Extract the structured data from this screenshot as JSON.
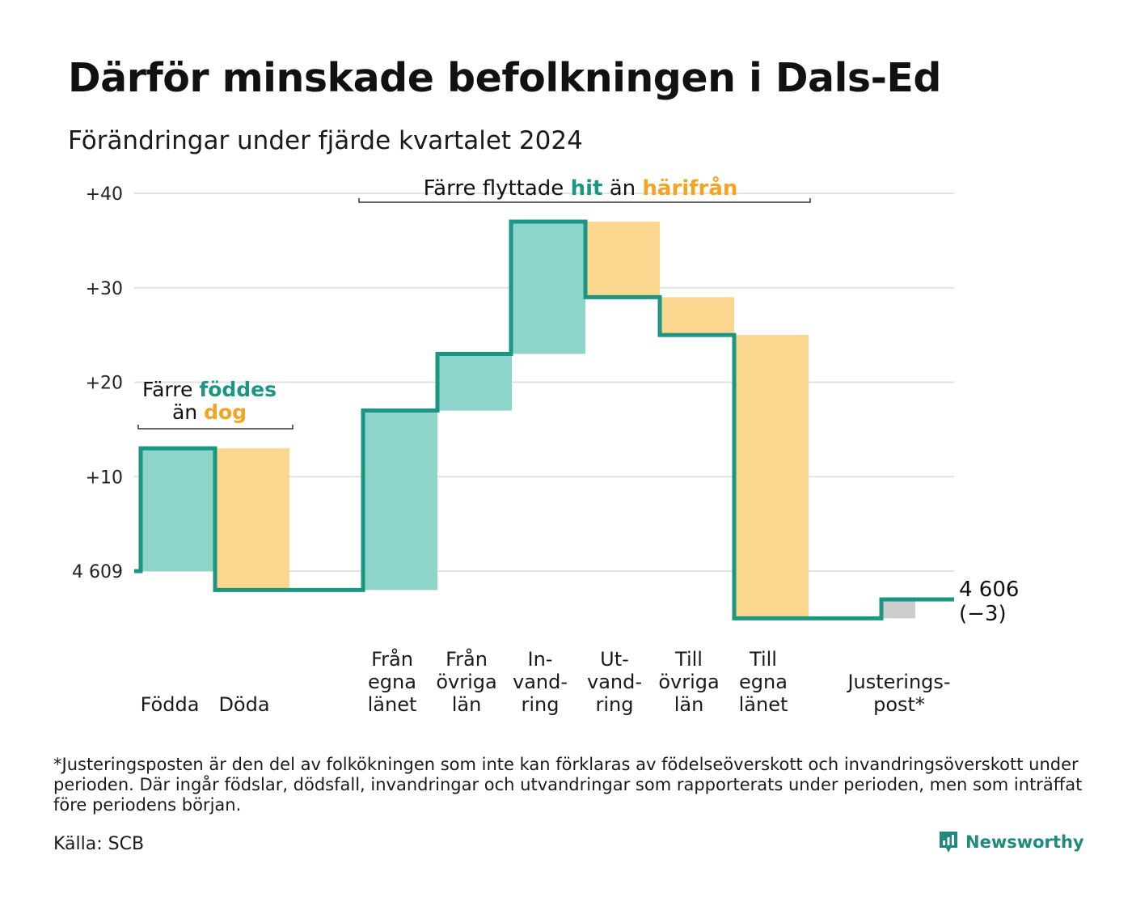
{
  "title": "Därför minskade befolkningen i Dals-Ed",
  "subtitle": "Förändringar under fjärde kvartalet 2024",
  "footnote": "*Justeringsposten är den del av folkökningen som inte kan förklaras av födelseöverskott och invandringsöverskott under perioden. Där ingår födslar, dödsfall, invandringar och utvandringar som rapporterats under perioden, men som inträffat före periodens början.",
  "source": "Källa: SCB",
  "logo": "Newsworthy",
  "colors": {
    "increase": "#8dd5cb",
    "decrease": "#fad68f",
    "adjustment": "#cccccc",
    "line": "#1a9683",
    "highlight_teal": "#1a9683",
    "highlight_orange": "#f2a422"
  },
  "chart_data": {
    "type": "waterfall",
    "baseline_label": "4 609",
    "baseline": 4609,
    "y_ticks": [
      "+40",
      "+30",
      "+20",
      "+10",
      "4 609"
    ],
    "y_tick_values": [
      40,
      30,
      20,
      10,
      0
    ],
    "ylim": [
      -6,
      40
    ],
    "grid": true,
    "steps": [
      {
        "name": "Födda",
        "label": [
          "Födda"
        ],
        "change": 13,
        "kind": "increase"
      },
      {
        "name": "Döda",
        "label": [
          "Döda"
        ],
        "change": -15,
        "kind": "decrease"
      },
      {
        "name": "Från egna länet",
        "label": [
          "Från",
          "egna",
          "länet"
        ],
        "change": 19,
        "kind": "increase"
      },
      {
        "name": "Från övriga län",
        "label": [
          "Från",
          "övriga",
          "län"
        ],
        "change": 6,
        "kind": "increase"
      },
      {
        "name": "Invandring",
        "label": [
          "In-",
          "vand-",
          "ring"
        ],
        "change": 14,
        "kind": "increase"
      },
      {
        "name": "Utvandring",
        "label": [
          "Ut-",
          "vand-",
          "ring"
        ],
        "change": -8,
        "kind": "decrease"
      },
      {
        "name": "Till övriga län",
        "label": [
          "Till",
          "övriga",
          "län"
        ],
        "change": -4,
        "kind": "decrease"
      },
      {
        "name": "Till egna länet",
        "label": [
          "Till",
          "egna",
          "länet"
        ],
        "change": -30,
        "kind": "decrease"
      },
      {
        "name": "Justeringspost*",
        "label": [
          "Justerings-",
          "post*"
        ],
        "change": 2,
        "kind": "adjustment"
      }
    ],
    "end_value": "4 606",
    "end_change": "(−3)",
    "annotations": [
      {
        "parts": [
          {
            "text": "Färre ",
            "style": "normal"
          },
          {
            "text": "föddes",
            "style": "teal"
          }
        ],
        "parts2": [
          {
            "text": "än ",
            "style": "normal"
          },
          {
            "text": "dog",
            "style": "orange"
          }
        ]
      },
      {
        "parts": [
          {
            "text": "Färre flyttade ",
            "style": "normal"
          },
          {
            "text": "hit",
            "style": "teal"
          },
          {
            "text": " än ",
            "style": "normal"
          },
          {
            "text": "härifrån",
            "style": "orange"
          }
        ]
      }
    ]
  }
}
